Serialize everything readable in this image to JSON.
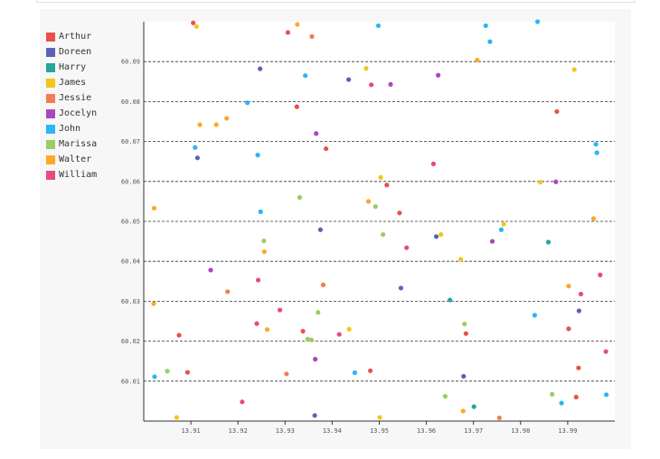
{
  "chart_data": {
    "type": "scatter",
    "title": "",
    "xlabel": "",
    "ylabel": "",
    "xlim": [
      13.9,
      14.0
    ],
    "ylim": [
      60.0,
      60.1
    ],
    "grid": {
      "x": false,
      "y": true,
      "style": "dashed"
    },
    "legend_position": "left",
    "x_ticks": [
      "13.91",
      "13.92",
      "13.93",
      "13.94",
      "13.95",
      "13.96",
      "13.97",
      "13.98",
      "13.99"
    ],
    "y_ticks": [
      "60.01",
      "60.02",
      "60.03",
      "60.04",
      "60.05",
      "60.06",
      "60.07",
      "60.08",
      "60.09"
    ],
    "series": [
      {
        "name": "Arthur",
        "color": "#e8514a",
        "points": [
          [
            13.9105,
            60.0997
          ],
          [
            13.9306,
            60.0973
          ],
          [
            13.9325,
            60.0787
          ],
          [
            13.9338,
            60.0225
          ],
          [
            13.9387,
            60.0682
          ],
          [
            13.9481,
            60.0126
          ],
          [
            13.9516,
            60.0591
          ],
          [
            13.9543,
            60.0521
          ],
          [
            13.9684,
            60.0219
          ],
          [
            13.9877,
            60.0775
          ],
          [
            13.9902,
            60.0231
          ],
          [
            13.9918,
            60.006
          ],
          [
            13.9923,
            60.0133
          ],
          [
            13.9093,
            60.0122
          ],
          [
            13.9075,
            60.0215
          ]
        ]
      },
      {
        "name": "Doreen",
        "color": "#5b63b8",
        "points": [
          [
            13.9247,
            60.0882
          ],
          [
            13.9114,
            60.0659
          ],
          [
            13.9375,
            60.0479
          ],
          [
            13.9363,
            60.0014
          ],
          [
            13.9435,
            60.0855
          ],
          [
            13.9546,
            60.0333
          ],
          [
            13.9621,
            60.0462
          ],
          [
            13.9679,
            60.0112
          ],
          [
            13.9924,
            60.0276
          ]
        ]
      },
      {
        "name": "Harry",
        "color": "#26a69a",
        "points": [
          [
            13.965,
            60.0303
          ],
          [
            13.9701,
            60.0036
          ],
          [
            13.9859,
            60.0448
          ]
        ]
      },
      {
        "name": "James",
        "color": "#f5c518",
        "points": [
          [
            13.9112,
            60.0988
          ],
          [
            13.907,
            60.0009
          ],
          [
            13.9472,
            60.0883
          ],
          [
            13.9436,
            60.023
          ],
          [
            13.9503,
            60.061
          ],
          [
            13.9501,
            60.0009
          ],
          [
            13.9631,
            60.0467
          ],
          [
            13.9673,
            60.0405
          ],
          [
            13.9764,
            60.0493
          ],
          [
            13.9842,
            60.0598
          ],
          [
            13.9914,
            60.088
          ]
        ]
      },
      {
        "name": "Jessie",
        "color": "#f37c52",
        "points": [
          [
            13.9303,
            60.0118
          ],
          [
            13.9381,
            60.0341
          ],
          [
            13.9357,
            60.0963
          ],
          [
            13.9178,
            60.0324
          ],
          [
            13.9755,
            60.0008
          ]
        ]
      },
      {
        "name": "Jocelyn",
        "color": "#ab47bc",
        "points": [
          [
            13.9142,
            60.0378
          ],
          [
            13.9364,
            60.0155
          ],
          [
            13.9366,
            60.072
          ],
          [
            13.9524,
            60.0843
          ],
          [
            13.9625,
            60.0866
          ],
          [
            13.974,
            60.045
          ],
          [
            13.9875,
            60.0599
          ]
        ]
      },
      {
        "name": "John",
        "color": "#29b6f6",
        "points": [
          [
            13.9023,
            60.0111
          ],
          [
            13.9109,
            60.0685
          ],
          [
            13.922,
            60.0797
          ],
          [
            13.9242,
            60.0666
          ],
          [
            13.9248,
            60.0524
          ],
          [
            13.9343,
            60.0865
          ],
          [
            13.9448,
            60.0121
          ],
          [
            13.9498,
            60.099
          ],
          [
            13.9726,
            60.099
          ],
          [
            13.9735,
            60.095
          ],
          [
            13.9759,
            60.0479
          ],
          [
            13.9836,
            60.1
          ],
          [
            13.983,
            60.0265
          ],
          [
            13.9887,
            60.0045
          ],
          [
            13.996,
            60.0693
          ],
          [
            13.9962,
            60.0672
          ],
          [
            13.9982,
            60.0066
          ]
        ]
      },
      {
        "name": "Marissa",
        "color": "#9ccc65",
        "points": [
          [
            13.905,
            60.0125
          ],
          [
            13.9255,
            60.0451
          ],
          [
            13.9331,
            60.056
          ],
          [
            13.9348,
            60.0205
          ],
          [
            13.9356,
            60.0203
          ],
          [
            13.937,
            60.0272
          ],
          [
            13.9492,
            60.0537
          ],
          [
            13.9508,
            60.0467
          ],
          [
            13.964,
            60.0062
          ],
          [
            13.9681,
            60.0243
          ],
          [
            13.9867,
            60.0067
          ]
        ]
      },
      {
        "name": "Walter",
        "color": "#ffa726",
        "points": [
          [
            13.9022,
            60.0533
          ],
          [
            13.9021,
            60.0294
          ],
          [
            13.9119,
            60.0742
          ],
          [
            13.9154,
            60.0742
          ],
          [
            13.9176,
            60.0758
          ],
          [
            13.9256,
            60.0424
          ],
          [
            13.9262,
            60.0229
          ],
          [
            13.9326,
            60.0993
          ],
          [
            13.9477,
            60.055
          ],
          [
            13.9708,
            60.0904
          ],
          [
            13.9678,
            60.0025
          ],
          [
            13.9902,
            60.0338
          ],
          [
            13.9955,
            60.0507
          ]
        ]
      },
      {
        "name": "William",
        "color": "#e84a7f",
        "points": [
          [
            13.9209,
            60.0048
          ],
          [
            13.924,
            60.0244
          ],
          [
            13.9243,
            60.0353
          ],
          [
            13.9289,
            60.0278
          ],
          [
            13.9415,
            60.0217
          ],
          [
            13.9483,
            60.0842
          ],
          [
            13.9558,
            60.0434
          ],
          [
            13.9615,
            60.0644
          ],
          [
            13.9928,
            60.0318
          ],
          [
            13.9969,
            60.0366
          ],
          [
            13.9981,
            60.0174
          ]
        ]
      }
    ]
  }
}
